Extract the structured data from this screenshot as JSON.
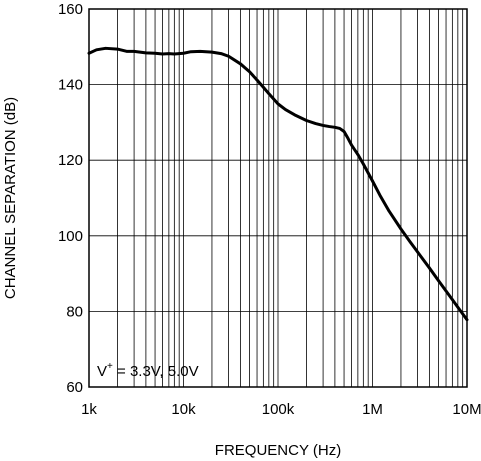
{
  "chart_data": {
    "type": "line",
    "title": "",
    "xlabel": "FREQUENCY (Hz)",
    "ylabel": "CHANNEL SEPARATION (dB)",
    "xscale": "log",
    "xlim": [
      1000,
      10000000
    ],
    "ylim": [
      60,
      160
    ],
    "grid": true,
    "x_ticks": [
      {
        "value": 1000,
        "label": "1k"
      },
      {
        "value": 10000,
        "label": "10k"
      },
      {
        "value": 100000,
        "label": "100k"
      },
      {
        "value": 1000000,
        "label": "1M"
      },
      {
        "value": 10000000,
        "label": "10M"
      }
    ],
    "y_ticks": [
      {
        "value": 60,
        "label": "60"
      },
      {
        "value": 80,
        "label": "80"
      },
      {
        "value": 100,
        "label": "100"
      },
      {
        "value": 120,
        "label": "120"
      },
      {
        "value": 140,
        "label": "140"
      },
      {
        "value": 160,
        "label": "160"
      }
    ],
    "annotation": {
      "base": "V",
      "superscript": "+",
      "rest": " = 3.3V, 5.0V"
    },
    "series": [
      {
        "x": [
          1000,
          1200,
          1500,
          2000,
          2500,
          3000,
          4000,
          5000,
          6000,
          7000,
          8000,
          10000,
          12000,
          15000,
          20000,
          25000,
          30000,
          40000,
          50000,
          60000,
          70000,
          80000,
          100000,
          120000,
          150000,
          200000,
          250000,
          300000,
          350000,
          400000,
          450000,
          500000,
          550000,
          600000,
          700000,
          800000,
          1000000,
          1200000,
          1500000,
          2000000,
          2500000,
          3000000,
          4000000,
          5000000,
          6000000,
          7000000,
          8000000,
          10000000
        ],
        "y": [
          148.3,
          149.2,
          149.6,
          149.4,
          148.8,
          148.8,
          148.4,
          148.3,
          148.1,
          148.2,
          148.1,
          148.3,
          148.7,
          148.8,
          148.6,
          148.2,
          147.5,
          145.5,
          143.4,
          141.2,
          139.3,
          137.6,
          134.9,
          133.4,
          132.0,
          130.5,
          129.7,
          129.2,
          128.9,
          128.7,
          128.4,
          127.6,
          125.8,
          124.0,
          121.5,
          119.0,
          114.5,
          110.7,
          106.5,
          101.8,
          98.4,
          95.7,
          91.5,
          88.1,
          85.4,
          83.1,
          81.1,
          77.8
        ]
      }
    ]
  }
}
